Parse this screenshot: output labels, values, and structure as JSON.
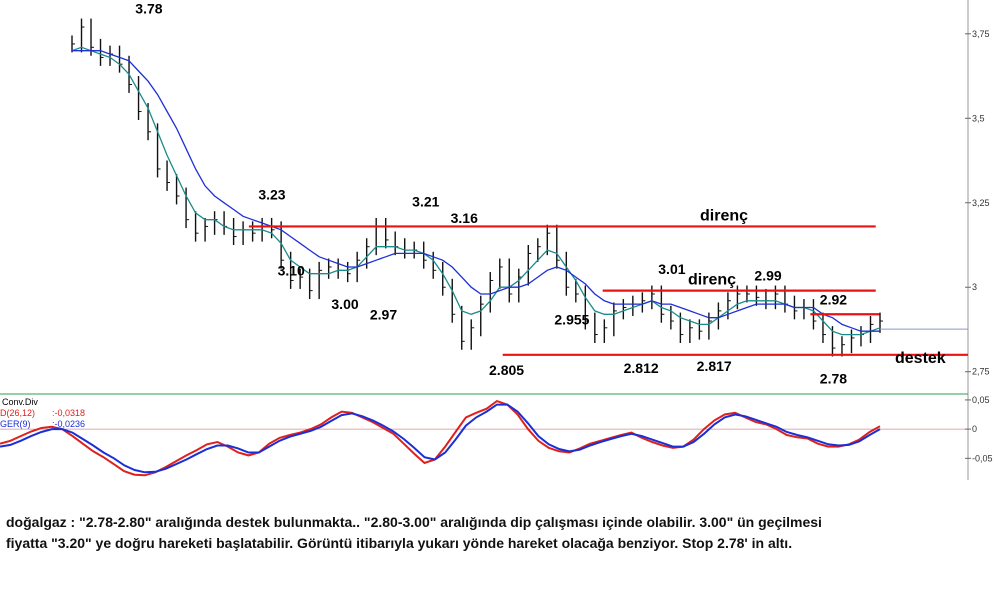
{
  "chart_data": {
    "type": "line",
    "price_panel": {
      "y_axis_ticks": [
        "3,75",
        "3,5",
        "3,25",
        "3",
        "2,75"
      ],
      "ylim": [
        2.69,
        3.85
      ],
      "series": [
        {
          "values": [
            3.72,
            3.77,
            3.71,
            3.68,
            3.69,
            3.66,
            3.6,
            3.52,
            3.46,
            3.35,
            3.31,
            3.27,
            3.2,
            3.16,
            3.18,
            3.2,
            3.18,
            3.15,
            3.17,
            3.16,
            3.18,
            3.17,
            3.08,
            3.02,
            3.03,
            2.99,
            3.05,
            3.06,
            3.05,
            3.04,
            3.08,
            3.12,
            3.18,
            3.14,
            3.12,
            3.11,
            3.11,
            3.08,
            3.05,
            3.0,
            2.92,
            2.84,
            2.88,
            2.95,
            3.02,
            3.06,
            2.98,
            3.03,
            3.1,
            3.12,
            3.16,
            3.08,
            3.0,
            2.98,
            2.9,
            2.86,
            2.88,
            2.93,
            2.94,
            2.95,
            2.96,
            2.98,
            2.92,
            2.9,
            2.86,
            2.88,
            2.87,
            2.9,
            2.93,
            2.96,
            2.98,
            2.98,
            2.97,
            2.96,
            2.98,
            2.95,
            2.93,
            2.94,
            2.9,
            2.86,
            2.82,
            2.83,
            2.85,
            2.86,
            2.89,
            2.9
          ]
        },
        {
          "values": [
            3.7,
            3.71,
            3.7,
            3.69,
            3.68,
            3.66,
            3.63,
            3.58,
            3.53,
            3.46,
            3.39,
            3.33,
            3.27,
            3.22,
            3.2,
            3.2,
            3.18,
            3.17,
            3.17,
            3.17,
            3.17,
            3.16,
            3.13,
            3.08,
            3.06,
            3.04,
            3.04,
            3.04,
            3.05,
            3.05,
            3.06,
            3.09,
            3.12,
            3.12,
            3.12,
            3.11,
            3.11,
            3.1,
            3.08,
            3.04,
            2.99,
            2.93,
            2.92,
            2.93,
            2.96,
            3.0,
            3.0,
            3.02,
            3.05,
            3.08,
            3.11,
            3.1,
            3.06,
            3.02,
            2.97,
            2.93,
            2.92,
            2.92,
            2.93,
            2.94,
            2.95,
            2.96,
            2.94,
            2.93,
            2.91,
            2.9,
            2.89,
            2.89,
            2.91,
            2.93,
            2.95,
            2.96,
            2.96,
            2.96,
            2.96,
            2.95,
            2.94,
            2.94,
            2.93,
            2.9,
            2.87,
            2.86,
            2.86,
            2.86,
            2.87,
            2.88
          ]
        },
        {
          "values": [
            3.7,
            3.7,
            3.7,
            3.7,
            3.69,
            3.68,
            3.67,
            3.64,
            3.61,
            3.57,
            3.52,
            3.47,
            3.41,
            3.35,
            3.3,
            3.27,
            3.25,
            3.23,
            3.21,
            3.2,
            3.19,
            3.18,
            3.17,
            3.15,
            3.13,
            3.11,
            3.09,
            3.08,
            3.07,
            3.06,
            3.06,
            3.07,
            3.08,
            3.09,
            3.1,
            3.1,
            3.1,
            3.1,
            3.09,
            3.08,
            3.06,
            3.03,
            3.0,
            2.98,
            2.98,
            2.99,
            3.0,
            3.0,
            3.01,
            3.03,
            3.05,
            3.06,
            3.05,
            3.03,
            3.01,
            2.98,
            2.96,
            2.95,
            2.95,
            2.95,
            2.95,
            2.96,
            2.95,
            2.95,
            2.94,
            2.93,
            2.92,
            2.91,
            2.91,
            2.92,
            2.93,
            2.94,
            2.95,
            2.95,
            2.95,
            2.95,
            2.94,
            2.94,
            2.94,
            2.92,
            2.91,
            2.89,
            2.88,
            2.87,
            2.87,
            2.87
          ]
        }
      ],
      "series_colors": [
        "#000000",
        "#1a8c8c",
        "#1f2fd6"
      ],
      "current_level": 2.876,
      "horizontal_lines": [
        {
          "y": 3.18,
          "x_from": 46,
          "x_to": 209,
          "label": "direnç"
        },
        {
          "y": 2.99,
          "x_from": 138,
          "x_to": 209,
          "label": "direnç"
        },
        {
          "y": 2.92,
          "x_from": 192,
          "x_to": 210,
          "label": ""
        },
        {
          "y": 2.8,
          "x_from": 112,
          "x_to": 233,
          "label": "destek"
        }
      ],
      "annotations": [
        {
          "text": "3.78",
          "x": 20,
          "y": 3.78,
          "anchor": "above"
        },
        {
          "text": "3.23",
          "x": 52,
          "y": 3.23,
          "anchor": "above"
        },
        {
          "text": "3.10",
          "x": 57,
          "y": 3.1,
          "anchor": "below"
        },
        {
          "text": "3.00",
          "x": 71,
          "y": 3.0,
          "anchor": "below"
        },
        {
          "text": "2.97",
          "x": 81,
          "y": 2.97,
          "anchor": "below"
        },
        {
          "text": "3.21",
          "x": 92,
          "y": 3.21,
          "anchor": "above"
        },
        {
          "text": "3.16",
          "x": 102,
          "y": 3.16,
          "anchor": "above"
        },
        {
          "text": "2.805",
          "x": 113,
          "y": 2.805,
          "anchor": "below"
        },
        {
          "text": "2.955",
          "x": 130,
          "y": 2.955,
          "anchor": "below"
        },
        {
          "text": "2.812",
          "x": 148,
          "y": 2.812,
          "anchor": "below"
        },
        {
          "text": "3.01",
          "x": 156,
          "y": 3.01,
          "anchor": "above"
        },
        {
          "text": "2.817",
          "x": 167,
          "y": 2.817,
          "anchor": "below"
        },
        {
          "text": "2.99",
          "x": 181,
          "y": 2.99,
          "anchor": "above"
        },
        {
          "text": "2.92",
          "x": 198,
          "y": 2.92,
          "anchor": "above"
        },
        {
          "text": "2.78",
          "x": 198,
          "y": 2.78,
          "anchor": "below"
        }
      ]
    },
    "indicator_panel": {
      "title": "Conv.Div",
      "legend": [
        {
          "text": "D(26,12)",
          "value": ":-0,0318",
          "color": "#e0201c"
        },
        {
          "text": "GER(9)",
          "value": ":-0,0236",
          "color": "#1a2fd6"
        }
      ],
      "y_axis_ticks": [
        "0,05",
        "0",
        "-0,05"
      ],
      "ylim": [
        -0.07,
        0.055
      ],
      "series": [
        {
          "values": [
            -0.025,
            -0.02,
            -0.012,
            -0.004,
            0.002,
            0.004,
            0.0,
            -0.012,
            -0.025,
            -0.038,
            -0.048,
            -0.06,
            -0.072,
            -0.078,
            -0.079,
            -0.074,
            -0.065,
            -0.055,
            -0.045,
            -0.036,
            -0.026,
            -0.022,
            -0.03,
            -0.04,
            -0.045,
            -0.04,
            -0.025,
            -0.015,
            -0.01,
            -0.006,
            0.0,
            0.008,
            0.02,
            0.03,
            0.028,
            0.02,
            0.012,
            0.002,
            -0.008,
            -0.025,
            -0.042,
            -0.058,
            -0.052,
            -0.03,
            -0.005,
            0.02,
            0.028,
            0.035,
            0.048,
            0.042,
            0.025,
            0.0,
            -0.02,
            -0.032,
            -0.038,
            -0.04,
            -0.033,
            -0.025,
            -0.02,
            -0.015,
            -0.01,
            -0.006,
            -0.015,
            -0.022,
            -0.028,
            -0.032,
            -0.03,
            -0.018,
            0.0,
            0.015,
            0.025,
            0.028,
            0.02,
            0.012,
            0.008,
            0.0,
            -0.01,
            -0.014,
            -0.016,
            -0.025,
            -0.03,
            -0.03,
            -0.026,
            -0.018,
            -0.005,
            0.005
          ]
        },
        {
          "values": [
            -0.03,
            -0.027,
            -0.02,
            -0.012,
            -0.005,
            0.0,
            0.0,
            -0.006,
            -0.017,
            -0.028,
            -0.04,
            -0.05,
            -0.062,
            -0.07,
            -0.074,
            -0.073,
            -0.068,
            -0.06,
            -0.052,
            -0.043,
            -0.034,
            -0.028,
            -0.028,
            -0.033,
            -0.04,
            -0.04,
            -0.03,
            -0.02,
            -0.013,
            -0.008,
            -0.003,
            0.004,
            0.014,
            0.024,
            0.027,
            0.022,
            0.015,
            0.006,
            -0.004,
            -0.017,
            -0.032,
            -0.048,
            -0.052,
            -0.04,
            -0.018,
            0.006,
            0.02,
            0.03,
            0.042,
            0.042,
            0.03,
            0.01,
            -0.012,
            -0.026,
            -0.034,
            -0.038,
            -0.035,
            -0.028,
            -0.022,
            -0.017,
            -0.012,
            -0.008,
            -0.012,
            -0.018,
            -0.024,
            -0.03,
            -0.03,
            -0.022,
            -0.008,
            0.008,
            0.02,
            0.025,
            0.022,
            0.016,
            0.01,
            0.004,
            -0.005,
            -0.01,
            -0.014,
            -0.02,
            -0.026,
            -0.028,
            -0.027,
            -0.021,
            -0.01,
            0.0
          ]
        }
      ],
      "series_colors": [
        "#e0201c",
        "#1a2fd6"
      ]
    }
  },
  "note": {
    "line1": "doğalgaz : \"2.78-2.80\" aralığında destek bulunmakta.. \"2.80-3.00\" aralığında dip çalışması içinde olabilir. 3.00\" ün geçilmesi",
    "line2": "fiyatta \"3.20\" ye doğru hareketi başlatabilir. Görüntü itibarıyla yukarı yönde hareket olacağa benziyor. Stop 2.78' in altı."
  }
}
